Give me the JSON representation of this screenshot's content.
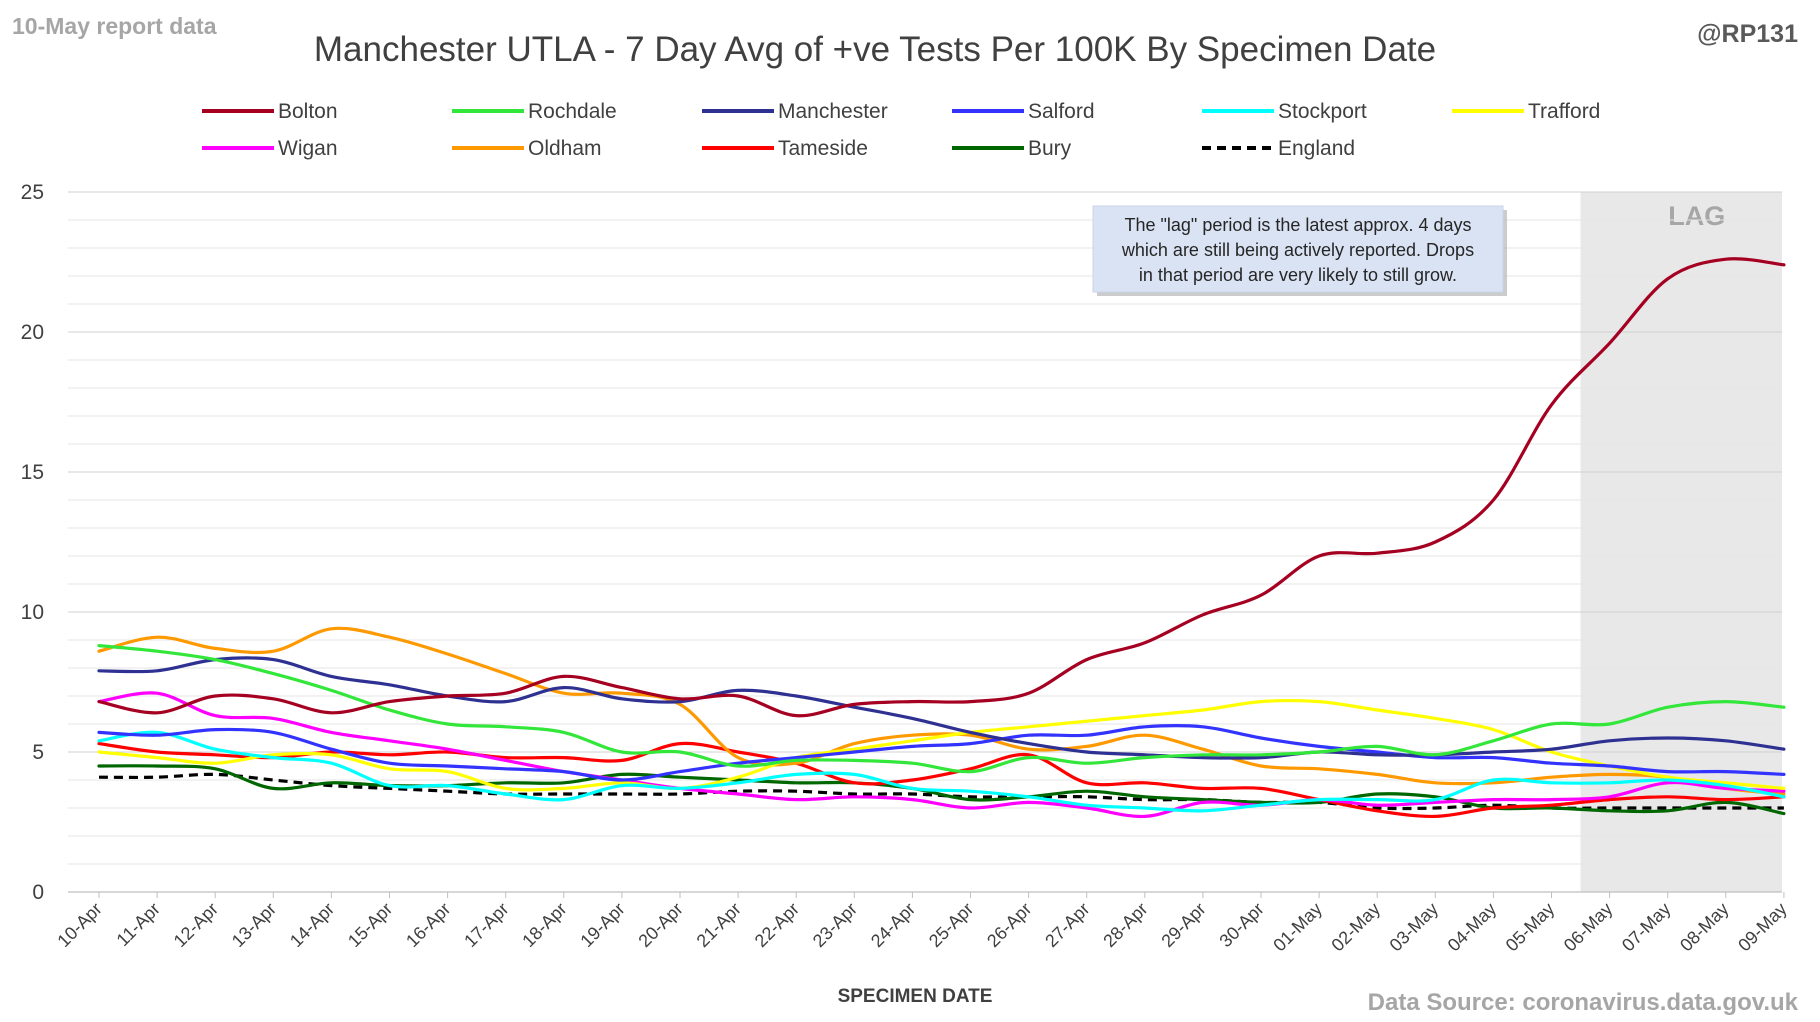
{
  "chart_data": {
    "type": "line",
    "title": "Manchester UTLA - 7 Day Avg of +ve Tests Per 100K By Specimen Date",
    "corner_left": "10-May report data",
    "corner_right": "@RP131",
    "xlabel": "SPECIMEN DATE",
    "source": "Data Source: coronavirus.data.gov.uk",
    "ylim": [
      0,
      25
    ],
    "yticks": [
      0,
      5,
      10,
      15,
      20,
      25
    ],
    "grid": true,
    "legend_position": "top",
    "x": [
      "10-Apr",
      "11-Apr",
      "12-Apr",
      "13-Apr",
      "14-Apr",
      "15-Apr",
      "16-Apr",
      "17-Apr",
      "18-Apr",
      "19-Apr",
      "20-Apr",
      "21-Apr",
      "22-Apr",
      "23-Apr",
      "24-Apr",
      "25-Apr",
      "26-Apr",
      "27-Apr",
      "28-Apr",
      "29-Apr",
      "30-Apr",
      "01-May",
      "02-May",
      "03-May",
      "04-May",
      "05-May",
      "06-May",
      "07-May",
      "08-May",
      "09-May"
    ],
    "lag_region": {
      "start": "06-May",
      "end": "09-May",
      "label": "LAG"
    },
    "annotation": [
      "The \"lag\" period is the latest approx. 4 days",
      "which are still being actively reported.  Drops",
      "in that period are very likely to still grow."
    ],
    "series": [
      {
        "name": "Bolton",
        "color": "#a50021",
        "dashed": false,
        "values": [
          6.8,
          6.4,
          7.0,
          6.9,
          6.4,
          6.8,
          7.0,
          7.1,
          7.7,
          7.3,
          6.9,
          7.0,
          6.3,
          6.7,
          6.8,
          6.8,
          7.1,
          8.3,
          8.9,
          9.9,
          10.6,
          12.0,
          12.1,
          12.5,
          14.0,
          17.4,
          19.6,
          21.9,
          22.6,
          22.4
        ]
      },
      {
        "name": "Rochdale",
        "color": "#33e63a",
        "dashed": false,
        "values": [
          8.8,
          8.6,
          8.3,
          7.8,
          7.2,
          6.5,
          6.0,
          5.9,
          5.7,
          5.0,
          5.0,
          4.5,
          4.7,
          4.7,
          4.6,
          4.3,
          4.8,
          4.6,
          4.8,
          4.9,
          4.9,
          5.0,
          5.2,
          4.9,
          5.4,
          6.0,
          6.0,
          6.6,
          6.8,
          6.6
        ]
      },
      {
        "name": "Manchester",
        "color": "#2e3192",
        "dashed": false,
        "values": [
          7.9,
          7.9,
          8.3,
          8.3,
          7.7,
          7.4,
          7.0,
          6.8,
          7.3,
          6.9,
          6.8,
          7.2,
          7.0,
          6.6,
          6.2,
          5.7,
          5.3,
          5.0,
          4.9,
          4.8,
          4.8,
          5.0,
          4.9,
          4.9,
          5.0,
          5.1,
          5.4,
          5.5,
          5.4,
          5.1
        ]
      },
      {
        "name": "Salford",
        "color": "#3333ff",
        "dashed": false,
        "values": [
          5.7,
          5.6,
          5.8,
          5.7,
          5.1,
          4.6,
          4.5,
          4.4,
          4.3,
          4.0,
          4.3,
          4.6,
          4.8,
          5.0,
          5.2,
          5.3,
          5.6,
          5.6,
          5.9,
          5.9,
          5.5,
          5.2,
          5.0,
          4.8,
          4.8,
          4.6,
          4.5,
          4.3,
          4.3,
          4.2
        ]
      },
      {
        "name": "Stockport",
        "color": "#00ffff",
        "dashed": false,
        "values": [
          5.4,
          5.7,
          5.1,
          4.8,
          4.6,
          3.8,
          3.8,
          3.5,
          3.3,
          3.8,
          3.7,
          3.9,
          4.2,
          4.2,
          3.7,
          3.6,
          3.4,
          3.1,
          3.0,
          2.9,
          3.1,
          3.3,
          3.3,
          3.3,
          4.0,
          3.9,
          3.9,
          4.0,
          3.8,
          3.4
        ]
      },
      {
        "name": "Trafford",
        "color": "#ffff00",
        "dashed": false,
        "values": [
          5.0,
          4.8,
          4.6,
          4.9,
          4.9,
          4.4,
          4.3,
          3.7,
          3.7,
          3.9,
          3.7,
          4.1,
          4.8,
          5.1,
          5.4,
          5.7,
          5.9,
          6.1,
          6.3,
          6.5,
          6.8,
          6.8,
          6.5,
          6.2,
          5.8,
          5.0,
          4.5,
          4.1,
          3.9,
          3.7
        ]
      },
      {
        "name": "Wigan",
        "color": "#ff00ff",
        "dashed": false,
        "values": [
          6.8,
          7.1,
          6.3,
          6.2,
          5.7,
          5.4,
          5.1,
          4.7,
          4.3,
          4.0,
          3.7,
          3.5,
          3.3,
          3.4,
          3.3,
          3.0,
          3.2,
          3.0,
          2.7,
          3.2,
          3.1,
          3.3,
          3.1,
          3.2,
          3.3,
          3.3,
          3.4,
          3.9,
          3.7,
          3.6
        ]
      },
      {
        "name": "Oldham",
        "color": "#ff9900",
        "dashed": false,
        "values": [
          8.6,
          9.1,
          8.7,
          8.6,
          9.4,
          9.1,
          8.5,
          7.8,
          7.1,
          7.1,
          6.7,
          4.8,
          4.6,
          5.3,
          5.6,
          5.6,
          5.1,
          5.2,
          5.6,
          5.1,
          4.5,
          4.4,
          4.2,
          3.9,
          3.9,
          4.1,
          4.2,
          4.1,
          3.7,
          3.5
        ]
      },
      {
        "name": "Tameside",
        "color": "#ff0000",
        "dashed": false,
        "values": [
          5.3,
          5.0,
          4.9,
          4.8,
          5.0,
          4.9,
          5.0,
          4.8,
          4.8,
          4.7,
          5.3,
          5.0,
          4.6,
          3.9,
          4.0,
          4.4,
          4.9,
          3.9,
          3.9,
          3.7,
          3.7,
          3.3,
          2.9,
          2.7,
          3.0,
          3.1,
          3.3,
          3.4,
          3.3,
          3.4
        ]
      },
      {
        "name": "Bury",
        "color": "#006600",
        "dashed": false,
        "values": [
          4.5,
          4.5,
          4.4,
          3.7,
          3.9,
          3.8,
          3.8,
          3.9,
          3.9,
          4.2,
          4.1,
          4.0,
          3.9,
          3.9,
          3.7,
          3.3,
          3.4,
          3.6,
          3.4,
          3.3,
          3.2,
          3.2,
          3.5,
          3.4,
          3.0,
          3.0,
          2.9,
          2.9,
          3.2,
          2.8
        ]
      },
      {
        "name": "England",
        "color": "#000000",
        "dashed": true,
        "values": [
          4.1,
          4.1,
          4.2,
          4.0,
          3.8,
          3.7,
          3.6,
          3.5,
          3.5,
          3.5,
          3.5,
          3.6,
          3.6,
          3.5,
          3.5,
          3.4,
          3.4,
          3.4,
          3.3,
          3.3,
          3.2,
          3.2,
          3.0,
          3.0,
          3.1,
          3.0,
          3.0,
          3.0,
          3.0,
          3.0
        ]
      }
    ]
  }
}
